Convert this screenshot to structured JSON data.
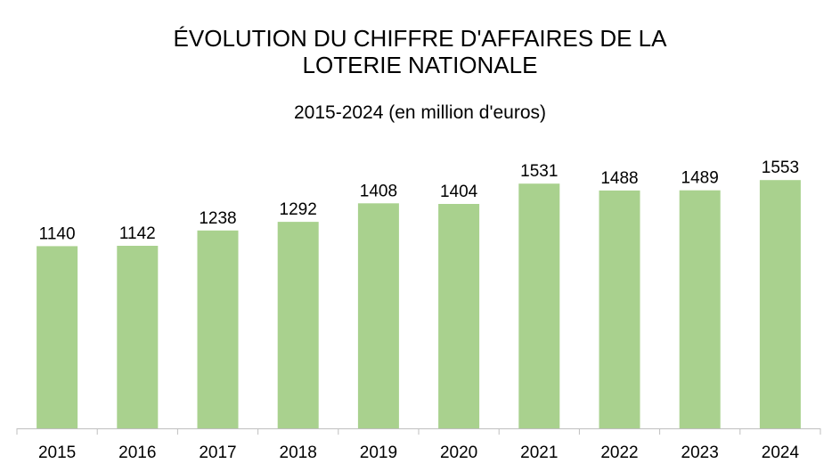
{
  "title_lines": [
    "ÉVOLUTION DU CHIFFRE D'AFFAIRES DE LA",
    "LOTERIE NATIONALE"
  ],
  "subtitle": "2015-2024 (en million d'euros)",
  "chart_data": {
    "type": "bar",
    "title": "ÉVOLUTION DU CHIFFRE D'AFFAIRES DE LA LOTERIE NATIONALE",
    "subtitle": "2015-2024 (en million d'euros)",
    "categories": [
      "2015",
      "2016",
      "2017",
      "2018",
      "2019",
      "2020",
      "2021",
      "2022",
      "2023",
      "2024"
    ],
    "values": [
      1140,
      1142,
      1238,
      1292,
      1408,
      1404,
      1531,
      1488,
      1489,
      1553
    ],
    "xlabel": "",
    "ylabel": "",
    "ylim": [
      0,
      1700
    ],
    "bar_color": "#a9d18e",
    "axis_color": "#bfbfbf",
    "data_labels": true,
    "grid": false,
    "legend": "none"
  }
}
